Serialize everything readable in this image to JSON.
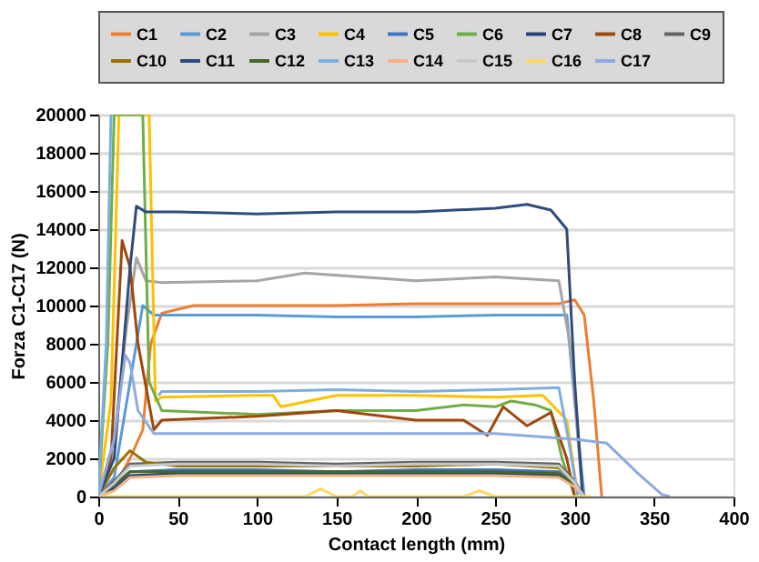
{
  "chart_data": {
    "type": "line",
    "xlabel": "Contact length (mm)",
    "ylabel": "Forza C1-C17 (N)",
    "xlim": [
      0,
      400
    ],
    "xticks": [
      0,
      50,
      100,
      150,
      200,
      250,
      300,
      350,
      400
    ],
    "ylim": [
      0,
      20000
    ],
    "yticks": [
      0,
      2000,
      4000,
      6000,
      8000,
      10000,
      12000,
      14000,
      16000,
      18000,
      20000
    ],
    "grid": "y",
    "legend": "top",
    "marker": "none",
    "line_style": "solid",
    "series": [
      {
        "name": "C1",
        "color": "#ed7d31",
        "x": [
          0,
          10,
          20,
          28,
          33,
          40,
          60,
          100,
          150,
          200,
          250,
          290,
          300,
          306,
          312,
          317
        ],
        "values": [
          0,
          500,
          2000,
          3500,
          8000,
          9600,
          10000,
          10000,
          10000,
          10100,
          10100,
          10100,
          10300,
          9500,
          5000,
          0
        ]
      },
      {
        "name": "C2",
        "color": "#5b9bd5",
        "x": [
          0,
          10,
          20,
          28,
          35,
          100,
          150,
          200,
          250,
          295,
          300,
          306
        ],
        "values": [
          0,
          1000,
          6000,
          10000,
          9500,
          9500,
          9400,
          9400,
          9500,
          9500,
          5000,
          0
        ]
      },
      {
        "name": "C3",
        "color": "#a5a5a5",
        "x": [
          0,
          10,
          18,
          24,
          30,
          40,
          100,
          130,
          200,
          250,
          290,
          297,
          305
        ],
        "values": [
          0,
          3000,
          9000,
          12500,
          11300,
          11200,
          11300,
          11700,
          11300,
          11500,
          11300,
          8000,
          0
        ]
      },
      {
        "name": "C4",
        "color": "#ffc000",
        "x": [
          0,
          8,
          13,
          32,
          36,
          40,
          100,
          110,
          115,
          150,
          200,
          250,
          280,
          295,
          302
        ],
        "values": [
          0,
          5000,
          20000,
          20000,
          5000,
          5200,
          5300,
          5300,
          4700,
          5300,
          5300,
          5200,
          5300,
          4000,
          0
        ]
      },
      {
        "name": "C5",
        "color": "#4472c4",
        "x": [
          0,
          10,
          20,
          50,
          100,
          150,
          200,
          250,
          290,
          300,
          306
        ],
        "values": [
          0,
          500,
          1300,
          1400,
          1400,
          1300,
          1400,
          1400,
          1300,
          600,
          0
        ]
      },
      {
        "name": "C6",
        "color": "#70ad47",
        "x": [
          0,
          6,
          10,
          28,
          32,
          40,
          100,
          150,
          200,
          230,
          250,
          260,
          275,
          285,
          292,
          300
        ],
        "values": [
          0,
          8000,
          20000,
          20000,
          6000,
          4500,
          4300,
          4500,
          4500,
          4800,
          4700,
          5000,
          4800,
          4500,
          2000,
          0
        ]
      },
      {
        "name": "C7",
        "color": "#264478",
        "x": [
          0,
          10,
          20,
          50,
          100,
          150,
          200,
          250,
          290,
          300,
          306
        ],
        "values": [
          0,
          400,
          1100,
          1200,
          1200,
          1200,
          1200,
          1200,
          1100,
          500,
          0
        ]
      },
      {
        "name": "C8",
        "color": "#9e480e",
        "x": [
          0,
          8,
          15,
          20,
          25,
          35,
          40,
          100,
          150,
          200,
          230,
          245,
          255,
          270,
          285,
          295,
          300
        ],
        "values": [
          0,
          2000,
          13400,
          12000,
          8000,
          3500,
          4000,
          4200,
          4500,
          4000,
          4000,
          3200,
          4700,
          3700,
          4400,
          2000,
          0
        ]
      },
      {
        "name": "C9",
        "color": "#636363",
        "x": [
          0,
          10,
          20,
          50,
          100,
          150,
          200,
          250,
          290,
          300,
          306
        ],
        "values": [
          0,
          800,
          1700,
          1800,
          1800,
          1700,
          1800,
          1800,
          1700,
          800,
          0
        ]
      },
      {
        "name": "C10",
        "color": "#997300",
        "x": [
          0,
          10,
          20,
          30,
          50,
          100,
          200,
          250,
          290,
          300,
          305
        ],
        "values": [
          0,
          1500,
          2400,
          1800,
          1600,
          1600,
          1600,
          1700,
          1500,
          800,
          0
        ]
      },
      {
        "name": "C11",
        "color": "#2f4b7c",
        "x": [
          0,
          10,
          20,
          24,
          30,
          50,
          100,
          150,
          200,
          250,
          270,
          285,
          295,
          300,
          305
        ],
        "values": [
          0,
          2000,
          12000,
          15200,
          14900,
          14900,
          14800,
          14900,
          14900,
          15100,
          15300,
          15000,
          14000,
          6000,
          0
        ]
      },
      {
        "name": "C12",
        "color": "#43682b",
        "x": [
          0,
          10,
          20,
          50,
          100,
          150,
          200,
          250,
          290,
          300,
          306
        ],
        "values": [
          0,
          600,
          1300,
          1300,
          1300,
          1300,
          1300,
          1300,
          1200,
          600,
          0
        ]
      },
      {
        "name": "C13",
        "color": "#7cafdd",
        "x": [
          0,
          5,
          8,
          10,
          38,
          40,
          100,
          150,
          200,
          250,
          290,
          296,
          302
        ],
        "values": [
          0,
          8000,
          20000,
          null,
          5300,
          5500,
          5500,
          5600,
          5500,
          5600,
          5700,
          3000,
          0
        ]
      },
      {
        "name": "C14",
        "color": "#f4b183",
        "x": [
          0,
          10,
          20,
          50,
          100,
          150,
          200,
          250,
          290,
          300,
          306
        ],
        "values": [
          0,
          300,
          1000,
          1100,
          1100,
          1100,
          1100,
          1100,
          1000,
          500,
          0
        ]
      },
      {
        "name": "C15",
        "color": "#c9c9c9",
        "x": [
          0,
          10,
          20,
          50,
          100,
          150,
          200,
          250,
          290,
          300,
          306
        ],
        "values": [
          0,
          700,
          1600,
          1700,
          1700,
          1600,
          1700,
          1700,
          1600,
          700,
          0
        ]
      },
      {
        "name": "C16",
        "color": "#ffd966",
        "x": [
          0,
          100,
          130,
          140,
          150,
          160,
          165,
          170,
          175,
          200,
          230,
          240,
          250,
          260,
          300,
          310
        ],
        "values": [
          0,
          0,
          0,
          400,
          0,
          0,
          300,
          0,
          0,
          0,
          0,
          300,
          0,
          0,
          0,
          0
        ]
      },
      {
        "name": "C17",
        "color": "#8faadc",
        "x": [
          0,
          10,
          17,
          20,
          25,
          35,
          50,
          100,
          150,
          200,
          250,
          300,
          320,
          340,
          355,
          360
        ],
        "values": [
          0,
          3000,
          7400,
          7000,
          4500,
          3300,
          3300,
          3300,
          3300,
          3300,
          3300,
          3000,
          2800,
          1200,
          100,
          0
        ]
      }
    ]
  }
}
